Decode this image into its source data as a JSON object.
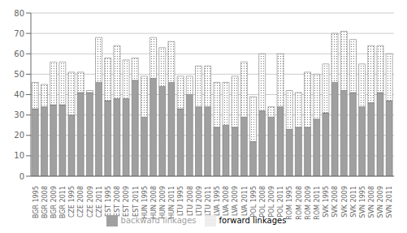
{
  "chart_data": {
    "type": "bar",
    "stacked": true,
    "categories": [
      "BGR 1995",
      "BGR 2008",
      "BGR 2009",
      "BGR 2011",
      "CZE 1995",
      "CZE 2008",
      "CZE 2009",
      "CZE 2011",
      "EST 1995",
      "EST 2008",
      "EST 2009",
      "EST 2011",
      "HUN 1995",
      "HUN 2008",
      "HUN 2009",
      "HUN 2011",
      "LTU 1995",
      "LTU 2008",
      "LTU 2009",
      "LTU 2011",
      "LVA 1995",
      "LVA 2008",
      "LVA 2009",
      "LVA 2011",
      "POL 1995",
      "POL 2008",
      "POL 2009",
      "POL 2011",
      "ROM 1995",
      "ROM 2008",
      "ROM 2009",
      "ROM 2011",
      "SVK 1995",
      "SVK 2008",
      "SVK 2009",
      "SVK 2011",
      "SVN 1995",
      "SVN 2008",
      "SVN 2009",
      "SVN 2011"
    ],
    "series": [
      {
        "name": "backward linkages",
        "color": "#a0a0a0",
        "values": [
          33,
          34,
          35,
          35,
          30,
          41,
          41,
          46,
          37,
          38,
          38,
          47,
          29,
          48,
          44,
          46,
          33,
          40,
          34,
          34,
          24,
          25,
          24,
          29,
          17,
          32,
          29,
          34,
          23,
          24,
          24,
          28,
          31,
          46,
          42,
          41,
          34,
          36,
          41,
          37
        ]
      },
      {
        "name": "forward linkages",
        "color": "#ffffff",
        "values": [
          13,
          11,
          21,
          21,
          21,
          10,
          1,
          22,
          21,
          26,
          19,
          11,
          20,
          20,
          19,
          20,
          16,
          9,
          20,
          20,
          22,
          21,
          25,
          27,
          22,
          28,
          5,
          26,
          19,
          17,
          27,
          22,
          24,
          24,
          29,
          26,
          21,
          28,
          23,
          23
        ]
      }
    ],
    "ylim": [
      0,
      80
    ],
    "yticks": [
      0,
      10,
      20,
      30,
      40,
      50,
      60,
      70,
      80
    ],
    "grid": true,
    "legend": "bottom"
  }
}
